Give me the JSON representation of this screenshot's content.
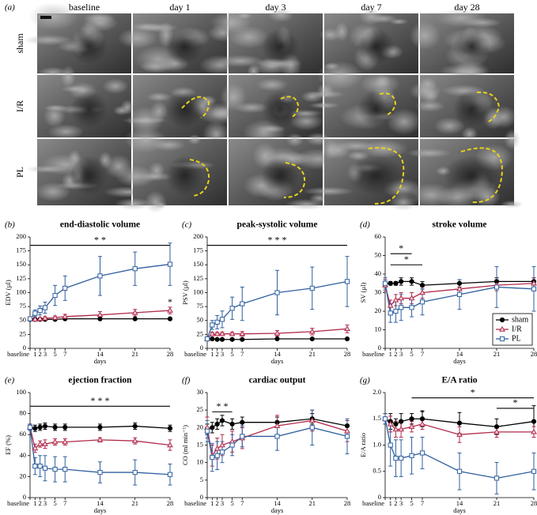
{
  "image_panel": {
    "label": "(a)",
    "columns": [
      "baseline",
      "day 1",
      "day 3",
      "day 7",
      "day 28"
    ],
    "rows": [
      "sham",
      "I/R",
      "PL"
    ]
  },
  "chart_data": [
    {
      "type": "line",
      "panel": "(b)",
      "title": "end-diastolic volume",
      "y_label": "EDV (µl)",
      "x_label": "days",
      "x": [
        0,
        1,
        2,
        3,
        5,
        7,
        14,
        21,
        28
      ],
      "xlim": [
        0,
        28
      ],
      "xticks": [
        {
          "value": 0,
          "label": "baseline"
        },
        1,
        2,
        3,
        5,
        7,
        14,
        21,
        28
      ],
      "ylim": [
        0,
        200
      ],
      "yticks": [
        0,
        25,
        50,
        75,
        100,
        125,
        150,
        175,
        200
      ],
      "series": [
        {
          "name": "sham",
          "color": "#000000",
          "marker": "circle",
          "values": [
            52,
            52,
            52,
            52,
            52,
            53,
            53,
            53,
            53
          ],
          "errors": [
            1.5,
            1.5,
            1.5,
            1.5,
            1.5,
            1.5,
            1.5,
            1.5,
            1.5
          ]
        },
        {
          "name": "I/R",
          "color": "#b02a4a",
          "marker": "triangle",
          "values": [
            53,
            52,
            53,
            54,
            55,
            57,
            60,
            64,
            68
          ],
          "errors": [
            2,
            2,
            2,
            3,
            3,
            4,
            6,
            6,
            6
          ]
        },
        {
          "name": "PL",
          "color": "#2f5f9e",
          "marker": "square",
          "values": [
            53,
            63,
            68,
            73,
            95,
            108,
            130,
            143,
            151
          ],
          "errors": [
            3,
            6,
            8,
            10,
            18,
            22,
            35,
            30,
            38
          ]
        }
      ],
      "annotations": [
        {
          "text": "* *",
          "color": "#8a6ab5",
          "x": [
            0,
            28
          ],
          "y": 185
        },
        {
          "text": "*",
          "color": "#d04a6a",
          "x": 28,
          "y": 82
        }
      ]
    },
    {
      "type": "line",
      "panel": "(c)",
      "title": "peak-systolic volume",
      "y_label": "PSV (µl)",
      "x_label": "days",
      "x": [
        0,
        1,
        2,
        3,
        5,
        7,
        14,
        21,
        28
      ],
      "xlim": [
        0,
        28
      ],
      "xticks": [
        {
          "value": 0,
          "label": "baseline"
        },
        1,
        2,
        3,
        5,
        7,
        14,
        21,
        28
      ],
      "ylim": [
        0,
        200
      ],
      "yticks": [
        0,
        25,
        50,
        75,
        100,
        125,
        150,
        175,
        200
      ],
      "series": [
        {
          "name": "sham",
          "color": "#000000",
          "marker": "circle",
          "values": [
            17,
            17,
            16,
            16,
            16,
            16,
            17,
            17,
            17
          ],
          "errors": [
            1,
            1,
            1,
            1,
            1,
            1,
            1,
            1,
            1
          ]
        },
        {
          "name": "I/R",
          "color": "#b02a4a",
          "marker": "triangle",
          "values": [
            17,
            26,
            26,
            26,
            26,
            26,
            27,
            30,
            35
          ],
          "errors": [
            2,
            3,
            3,
            3,
            3,
            4,
            5,
            6,
            7
          ]
        },
        {
          "name": "PL",
          "color": "#2f5f9e",
          "marker": "square",
          "values": [
            17,
            42,
            47,
            52,
            72,
            80,
            100,
            108,
            120
          ],
          "errors": [
            2,
            8,
            12,
            15,
            20,
            30,
            40,
            38,
            45
          ]
        }
      ],
      "annotations": [
        {
          "text": "* * *",
          "color": "#8a6ab5",
          "x": [
            0,
            28
          ],
          "y": 185
        }
      ]
    },
    {
      "type": "line",
      "panel": "(d)",
      "title": "stroke volume",
      "y_label": "SV (µl)",
      "x_label": "days",
      "x": [
        0,
        1,
        2,
        3,
        5,
        7,
        14,
        21,
        28
      ],
      "xlim": [
        0,
        28
      ],
      "xticks": [
        {
          "value": 0,
          "label": "baseline"
        },
        1,
        2,
        3,
        5,
        7,
        14,
        21,
        28
      ],
      "ylim": [
        0,
        60
      ],
      "yticks": [
        0,
        10,
        20,
        30,
        40,
        50,
        60
      ],
      "legend": "lower right",
      "series": [
        {
          "name": "sham",
          "color": "#000000",
          "marker": "circle",
          "values": [
            35,
            35,
            35,
            36,
            36,
            34,
            35,
            36,
            36
          ],
          "errors": [
            2,
            1,
            1,
            2,
            2,
            2,
            2,
            2,
            2
          ]
        },
        {
          "name": "I/R",
          "color": "#b02a4a",
          "marker": "triangle",
          "values": [
            34,
            23,
            26,
            27,
            27,
            30,
            32,
            34,
            35
          ],
          "errors": [
            3,
            3,
            3,
            3,
            3,
            3,
            3,
            3,
            3
          ]
        },
        {
          "name": "PL",
          "color": "#2f5f9e",
          "marker": "square",
          "values": [
            35,
            19,
            20,
            22,
            22,
            25,
            29,
            33,
            32
          ],
          "errors": [
            3,
            5,
            6,
            7,
            5,
            7,
            8,
            11,
            12
          ]
        }
      ],
      "annotations": [
        {
          "text": "*",
          "color": "#2f5f9e",
          "x": [
            1,
            5
          ],
          "y": 51
        },
        {
          "text": "*",
          "color": "#b02a4a",
          "x": [
            1,
            7
          ],
          "y": 45
        }
      ]
    },
    {
      "type": "line",
      "panel": "(e)",
      "title": "ejection fraction",
      "y_label": "EF (%)",
      "x_label": "days",
      "x": [
        0,
        1,
        2,
        3,
        5,
        7,
        14,
        21,
        28
      ],
      "xlim": [
        0,
        28
      ],
      "xticks": [
        {
          "value": 0,
          "label": "baseline"
        },
        1,
        2,
        3,
        5,
        7,
        14,
        21,
        28
      ],
      "ylim": [
        0,
        100
      ],
      "yticks": [
        0,
        20,
        40,
        60,
        80,
        100
      ],
      "series": [
        {
          "name": "sham",
          "color": "#000000",
          "marker": "circle",
          "values": [
            67,
            66,
            67,
            68,
            67,
            67,
            67,
            68,
            66
          ],
          "errors": [
            3,
            3,
            3,
            3,
            3,
            3,
            3,
            3,
            3
          ]
        },
        {
          "name": "I/R",
          "color": "#b02a4a",
          "marker": "triangle",
          "values": [
            67,
            47,
            51,
            51,
            53,
            53,
            55,
            54,
            50
          ],
          "errors": [
            3,
            4,
            3,
            4,
            3,
            3,
            2,
            3,
            5
          ]
        },
        {
          "name": "PL",
          "color": "#2f5f9e",
          "marker": "square",
          "values": [
            67,
            30,
            30,
            28,
            27,
            27,
            24,
            24,
            22
          ],
          "errors": [
            3,
            8,
            10,
            12,
            12,
            12,
            10,
            12,
            10
          ]
        }
      ],
      "annotations": [
        {
          "text": "* * *",
          "color": "#8a6ab5",
          "x": [
            0,
            28
          ],
          "y": 87
        }
      ]
    },
    {
      "type": "line",
      "panel": "(f)",
      "title": "cardiac output",
      "y_label": "CO (ml min⁻¹)",
      "x_label": "days",
      "x": [
        0,
        1,
        2,
        3,
        5,
        7,
        14,
        21,
        28
      ],
      "xlim": [
        0,
        28
      ],
      "xticks": [
        {
          "value": 0,
          "label": "baseline"
        },
        1,
        2,
        3,
        5,
        7,
        14,
        21,
        28
      ],
      "ylim": [
        0,
        30
      ],
      "yticks": [
        0,
        5,
        10,
        15,
        20,
        25,
        30
      ],
      "series": [
        {
          "name": "sham",
          "color": "#000000",
          "marker": "circle",
          "values": [
            19.5,
            20,
            21,
            22,
            21,
            21.5,
            21.5,
            22.5,
            20.5
          ],
          "errors": [
            1.5,
            1.5,
            1.5,
            1.5,
            1.5,
            1.5,
            1.5,
            1.5,
            1.5
          ]
        },
        {
          "name": "I/R",
          "color": "#b02a4a",
          "marker": "triangle",
          "values": [
            20,
            12,
            14,
            15,
            16,
            17,
            20.5,
            22,
            19
          ],
          "errors": [
            3,
            3,
            3,
            3,
            3,
            3,
            3,
            3,
            3
          ]
        },
        {
          "name": "PL",
          "color": "#2f5f9e",
          "marker": "square",
          "values": [
            19,
            11.5,
            12,
            13,
            15,
            17.5,
            17.5,
            20,
            17.5
          ],
          "errors": [
            3,
            4,
            4,
            3,
            3,
            3,
            4,
            5,
            5
          ]
        }
      ],
      "annotations": [
        {
          "text": "* *",
          "color": "#8a6ab5",
          "x": [
            1,
            5
          ],
          "y": 24.5
        }
      ]
    },
    {
      "type": "line",
      "panel": "(g)",
      "title": "E/A ratio",
      "y_label": "E/A ratio",
      "x_label": "days",
      "x": [
        0,
        1,
        2,
        3,
        5,
        7,
        14,
        21,
        28
      ],
      "xlim": [
        0,
        28
      ],
      "xticks": [
        {
          "value": 0,
          "label": "baseline"
        },
        1,
        2,
        3,
        5,
        7,
        14,
        21,
        28
      ],
      "ylim": [
        0,
        2
      ],
      "yticks": [
        0,
        0.5,
        {
          "value": 1,
          "label": "1.0"
        },
        1.5,
        {
          "value": 2,
          "label": "2.0"
        }
      ],
      "series": [
        {
          "name": "sham",
          "color": "#000000",
          "marker": "circle",
          "values": [
            1.5,
            1.45,
            1.4,
            1.45,
            1.5,
            1.5,
            1.42,
            1.35,
            1.45
          ],
          "errors": [
            0.1,
            0.15,
            0.1,
            0.15,
            0.1,
            0.15,
            0.2,
            0.15,
            0.3
          ]
        },
        {
          "name": "I/R",
          "color": "#b02a4a",
          "marker": "triangle",
          "values": [
            1.5,
            1.4,
            1.3,
            1.3,
            1.35,
            1.4,
            1.2,
            1.25,
            1.25
          ],
          "errors": [
            0.1,
            0.15,
            0.15,
            0.15,
            0.1,
            0.1,
            0.15,
            0.1,
            0.1
          ]
        },
        {
          "name": "PL",
          "color": "#2f5f9e",
          "marker": "square",
          "values": [
            1.5,
            1.0,
            0.75,
            0.75,
            0.8,
            0.85,
            0.5,
            0.37,
            0.5
          ],
          "errors": [
            0.1,
            0.4,
            0.35,
            0.35,
            0.35,
            0.3,
            0.35,
            0.3,
            0.35
          ]
        }
      ],
      "annotations": [
        {
          "text": "*",
          "color": "#2f5f9e",
          "x": [
            5,
            28
          ],
          "y": 1.9
        },
        {
          "text": "*",
          "color": "#b02a4a",
          "x": [
            21,
            28
          ],
          "y": 1.7
        },
        {
          "text": "*",
          "color": "#8a6ab5",
          "x": 7,
          "y": 1.6
        }
      ]
    }
  ]
}
